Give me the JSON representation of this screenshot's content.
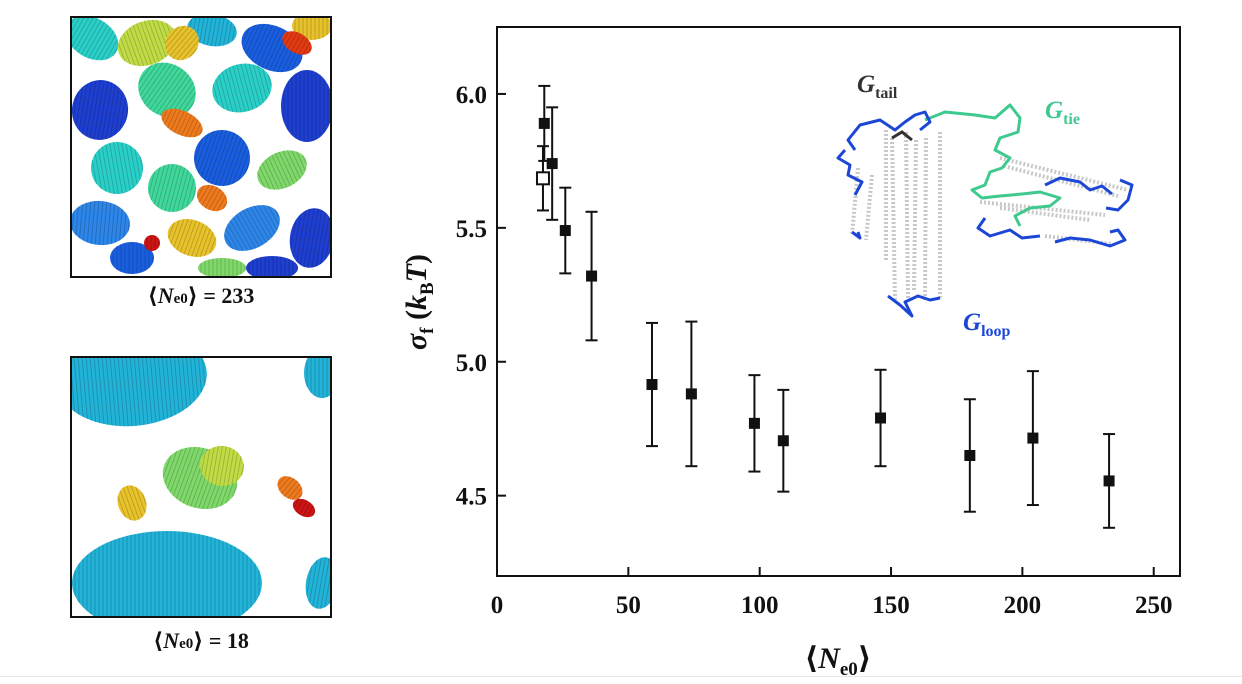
{
  "snapshots": {
    "top_caption": {
      "open": "⟨",
      "symbol": "N",
      "subscript": "e0",
      "close": "⟩",
      "value": "= 233"
    },
    "bottom_caption": {
      "open": "⟨",
      "symbol": "N",
      "subscript": "e0",
      "close": "⟩",
      "value": "= 18"
    },
    "palette": [
      "#1f3fd1",
      "#1a5ee0",
      "#2d86e8",
      "#22b3d9",
      "#2ad0c8",
      "#3fd89a",
      "#7fd86a",
      "#c0dc45",
      "#e8c22a",
      "#ee7a1e",
      "#e23a12",
      "#cc1414"
    ]
  },
  "inset": {
    "labels": [
      {
        "symbol": "G",
        "subscript": "tail",
        "color": "#333333"
      },
      {
        "symbol": "G",
        "subscript": "tie",
        "color": "#3ec98e"
      },
      {
        "symbol": "G",
        "subscript": "loop",
        "color": "#1c47d6"
      }
    ]
  },
  "chart_data": {
    "type": "scatter",
    "xlabel": "⟨Ne0⟩",
    "ylabel": "σf (kBT)",
    "xlim": [
      0,
      260
    ],
    "ylim": [
      4.2,
      6.25
    ],
    "xticks": [
      0,
      50,
      100,
      150,
      200,
      250
    ],
    "yticks": [
      4.5,
      5.0,
      5.5,
      6.0
    ],
    "series": [
      {
        "marker": "filled-square",
        "points": [
          {
            "x": 18,
            "y": 5.89,
            "err": 0.14
          },
          {
            "x": 21,
            "y": 5.74,
            "err": 0.21
          },
          {
            "x": 26,
            "y": 5.49,
            "err": 0.16
          },
          {
            "x": 36,
            "y": 5.32,
            "err": 0.24
          },
          {
            "x": 59,
            "y": 4.915,
            "err": 0.23
          },
          {
            "x": 74,
            "y": 4.88,
            "err": 0.27
          },
          {
            "x": 98,
            "y": 4.77,
            "err": 0.18
          },
          {
            "x": 109,
            "y": 4.705,
            "err": 0.19
          },
          {
            "x": 146,
            "y": 4.79,
            "err": 0.18
          },
          {
            "x": 180,
            "y": 4.65,
            "err": 0.21
          },
          {
            "x": 204,
            "y": 4.715,
            "err": 0.25
          },
          {
            "x": 233,
            "y": 4.555,
            "err": 0.175
          }
        ]
      },
      {
        "marker": "open-square",
        "points": [
          {
            "x": 17.5,
            "y": 5.685,
            "err": 0.12
          }
        ]
      }
    ]
  }
}
